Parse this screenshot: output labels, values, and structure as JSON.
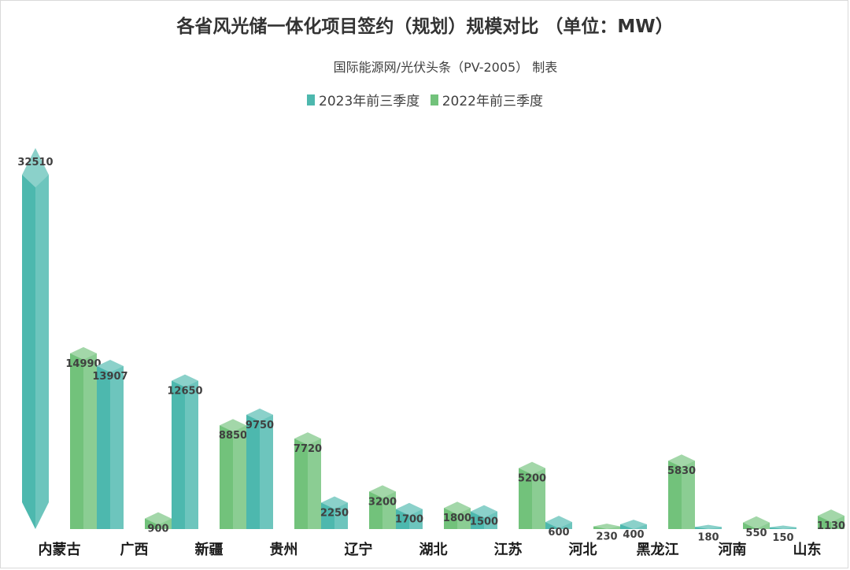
{
  "chart_data": {
    "type": "bar",
    "title": "各省风光储一体化项目签约（规划）规模对比 （单位：MW）",
    "subtitle": "国际能源网/光伏头条（PV-2005） 制表",
    "categories": [
      "内蒙古",
      "广西",
      "新疆",
      "贵州",
      "辽宁",
      "湖北",
      "江苏",
      "河北",
      "黑龙江",
      "河南",
      "山东"
    ],
    "series": [
      {
        "name": "2023年前三季度",
        "color": "#4db8ae",
        "values": [
          32510,
          13907,
          12650,
          9750,
          2250,
          1700,
          1500,
          600,
          400,
          180,
          150
        ]
      },
      {
        "name": "2022年前三季度",
        "color": "#72c27b",
        "values": [
          14990,
          900,
          8850,
          7720,
          3200,
          1800,
          5200,
          230,
          5830,
          550,
          1130
        ]
      }
    ],
    "ylim": [
      0,
      32510
    ],
    "grid": false,
    "legend_position": "top"
  }
}
